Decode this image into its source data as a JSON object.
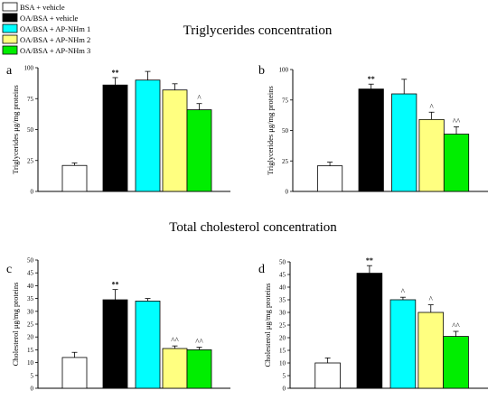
{
  "figure": {
    "section_titles": [
      "Triglycerides concentration",
      "Total cholesterol concentration"
    ]
  },
  "legend": [
    {
      "label": "BSA + vehicle",
      "color": "#ffffff"
    },
    {
      "label": "OA/BSA + vehicle",
      "color": "#000000"
    },
    {
      "label": "OA/BSA + AP-NHm 1",
      "color": "#00ffff"
    },
    {
      "label": "OA/BSA + AP-NHm 2",
      "color": "#ffff80"
    },
    {
      "label": "OA/BSA + AP-NHm 3",
      "color": "#00ee00"
    }
  ],
  "chart_data": [
    {
      "type": "bar",
      "panel": "a",
      "ylabel": "Triglycerides μg/mg proteins",
      "ylim": [
        0,
        100
      ],
      "yticks": [
        0,
        25,
        50,
        75,
        100
      ],
      "series": [
        {
          "name": "BSA + vehicle",
          "value": 21,
          "error": 2,
          "annotation": ""
        },
        {
          "name": "OA/BSA + vehicle",
          "value": 86,
          "error": 6,
          "annotation": "**"
        },
        {
          "name": "OA/BSA + AP-NHm 1",
          "value": 90,
          "error": 7,
          "annotation": ""
        },
        {
          "name": "OA/BSA + AP-NHm 2",
          "value": 82,
          "error": 5,
          "annotation": ""
        },
        {
          "name": "OA/BSA + AP-NHm 3",
          "value": 66,
          "error": 5,
          "annotation": "^"
        }
      ]
    },
    {
      "type": "bar",
      "panel": "b",
      "ylabel": "Triglycerides μg/mg proteins",
      "ylim": [
        0,
        100
      ],
      "yticks": [
        0,
        25,
        50,
        75,
        100
      ],
      "series": [
        {
          "name": "BSA + vehicle",
          "value": 21,
          "error": 3,
          "annotation": ""
        },
        {
          "name": "OA/BSA + vehicle",
          "value": 84,
          "error": 4,
          "annotation": "**"
        },
        {
          "name": "OA/BSA + AP-NHm 1",
          "value": 80,
          "error": 12,
          "annotation": ""
        },
        {
          "name": "OA/BSA + AP-NHm 2",
          "value": 59,
          "error": 6,
          "annotation": "^"
        },
        {
          "name": "OA/BSA + AP-NHm 3",
          "value": 47,
          "error": 6,
          "annotation": "^^"
        }
      ]
    },
    {
      "type": "bar",
      "panel": "c",
      "ylabel": "Cholesterol μg/mg proteins",
      "ylim": [
        0,
        50
      ],
      "yticks": [
        0,
        5,
        10,
        15,
        20,
        25,
        30,
        35,
        40,
        45,
        50
      ],
      "series": [
        {
          "name": "BSA + vehicle",
          "value": 12,
          "error": 2,
          "annotation": ""
        },
        {
          "name": "OA/BSA + vehicle",
          "value": 34.5,
          "error": 4,
          "annotation": "**"
        },
        {
          "name": "OA/BSA + AP-NHm 1",
          "value": 34,
          "error": 1,
          "annotation": ""
        },
        {
          "name": "OA/BSA + AP-NHm 2",
          "value": 15.5,
          "error": 1,
          "annotation": "^^"
        },
        {
          "name": "OA/BSA + AP-NHm 3",
          "value": 15,
          "error": 1,
          "annotation": "^^"
        }
      ]
    },
    {
      "type": "bar",
      "panel": "d",
      "ylabel": "Cholesterol μg/mg proteins",
      "ylim": [
        0,
        50
      ],
      "yticks": [
        0,
        5,
        10,
        15,
        20,
        25,
        30,
        35,
        40,
        45,
        50
      ],
      "series": [
        {
          "name": "BSA + vehicle",
          "value": 10,
          "error": 2,
          "annotation": ""
        },
        {
          "name": "OA/BSA + vehicle",
          "value": 45.5,
          "error": 3,
          "annotation": "**"
        },
        {
          "name": "OA/BSA + AP-NHm 1",
          "value": 35,
          "error": 1,
          "annotation": "^"
        },
        {
          "name": "OA/BSA + AP-NHm 2",
          "value": 30,
          "error": 3,
          "annotation": "^"
        },
        {
          "name": "OA/BSA + AP-NHm 3",
          "value": 20.5,
          "error": 2,
          "annotation": "^^"
        }
      ]
    }
  ]
}
